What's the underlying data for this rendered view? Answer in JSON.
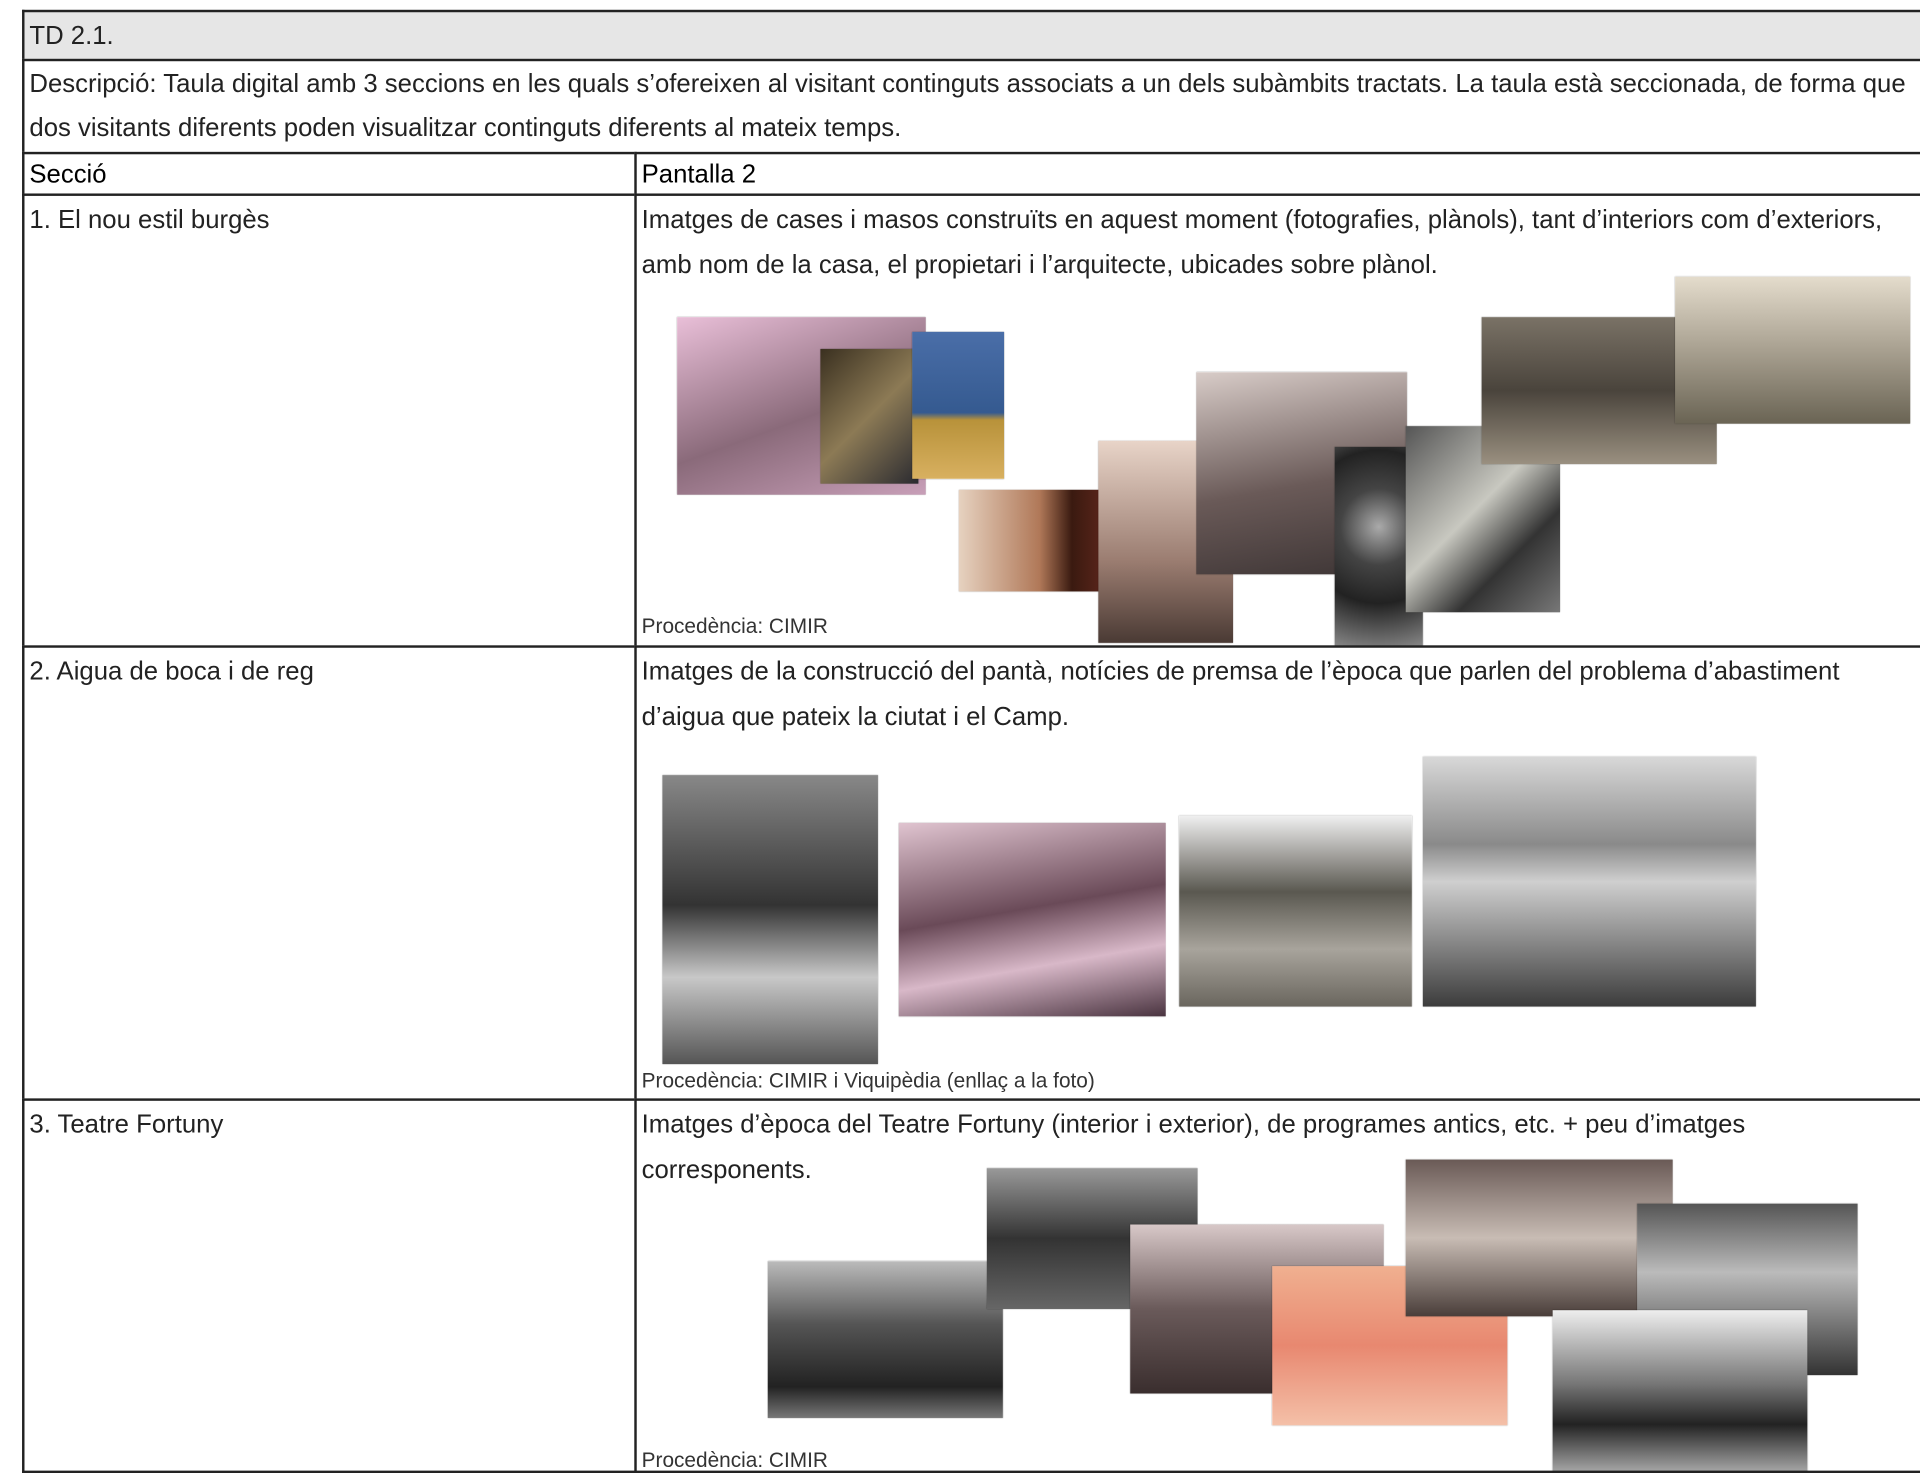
{
  "header": {
    "title": "TD 2.1.",
    "description": "Descripció: Taula digital amb 3 seccions en les quals s’ofereixen al visitant continguts associats a un dels subàmbits tractats. La taula està seccionada, de forma que dos visitants diferents poden visualitzar continguts diferents al mateix temps."
  },
  "table": {
    "columns": [
      "Secció",
      "Pantalla 2"
    ],
    "rows": [
      {
        "section": "1. El nou estil burgès",
        "text": "Imatges de cases i masos construïts en aquest moment (fotografies, plànols), tant d’interiors com d’exteriors, amb nom de la casa, el propietari i l’arquitecte, ubicades sobre plànol.",
        "source": "Procedència: CIMIR"
      },
      {
        "section": "2. Aigua de boca i de reg",
        "text": "Imatges de la construcció del pantà, notícies de premsa de l’època que parlen del problema d’abastiment d’aigua que pateix la ciutat i el Camp.",
        "source": "Procedència: CIMIR i Viquipèdia (enllaç a la foto)"
      },
      {
        "section": "3. Teatre Fortuny",
        "text": "Imatges d’època del Teatre Fortuny (interior i exterior), de  programes antics, etc. + peu d’imatges corresponents.",
        "source": "Procedència: CIMIR"
      }
    ]
  }
}
